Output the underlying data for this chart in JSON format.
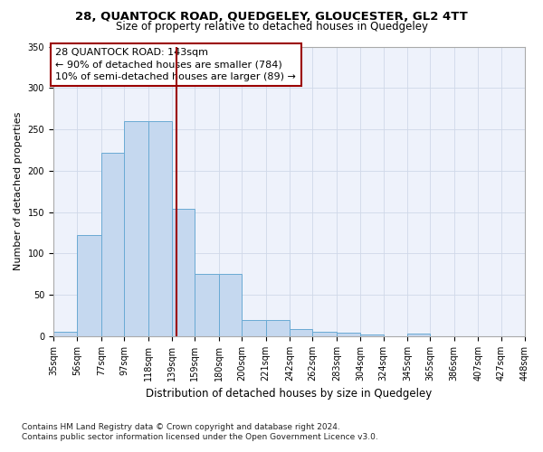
{
  "title": "28, QUANTOCK ROAD, QUEDGELEY, GLOUCESTER, GL2 4TT",
  "subtitle": "Size of property relative to detached houses in Quedgeley",
  "xlabel": "Distribution of detached houses by size in Quedgeley",
  "ylabel": "Number of detached properties",
  "footnote1": "Contains HM Land Registry data © Crown copyright and database right 2024.",
  "footnote2": "Contains public sector information licensed under the Open Government Licence v3.0.",
  "annotation_line1": "28 QUANTOCK ROAD: 143sqm",
  "annotation_line2": "← 90% of detached houses are smaller (784)",
  "annotation_line3": "10% of semi-detached houses are larger (89) →",
  "property_size": 143,
  "bar_edges": [
    35,
    56,
    77,
    97,
    118,
    139,
    159,
    180,
    200,
    221,
    242,
    262,
    283,
    304,
    324,
    345,
    365,
    386,
    407,
    427,
    448
  ],
  "bar_values": [
    6,
    122,
    222,
    260,
    260,
    154,
    75,
    75,
    20,
    20,
    9,
    5,
    4,
    2,
    0,
    3,
    0,
    0,
    0,
    0,
    3
  ],
  "bar_color": "#c5d8ef",
  "bar_edge_color": "#6aaad4",
  "vline_color": "#9B0000",
  "background_color": "#eef2fb",
  "grid_color": "#d0d8e8",
  "ylim": [
    0,
    350
  ],
  "yticks": [
    0,
    50,
    100,
    150,
    200,
    250,
    300,
    350
  ],
  "title_fontsize": 9.5,
  "subtitle_fontsize": 8.5,
  "ylabel_fontsize": 8,
  "xlabel_fontsize": 8.5,
  "tick_fontsize": 7,
  "annot_fontsize": 8,
  "footnote_fontsize": 6.5
}
